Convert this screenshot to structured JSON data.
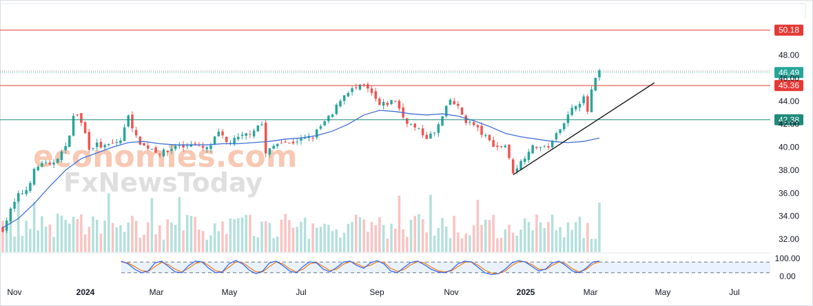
{
  "watermark": {
    "line1": "economies.com",
    "line2": "FxNewsToday"
  },
  "chart_data": {
    "type": "candlestick",
    "title": "",
    "xlabel": "",
    "ylabel": "",
    "ylim": [
      30.8,
      52.8
    ],
    "x_ticks": [
      "Nov",
      "2024",
      "Mar",
      "May",
      "Jul",
      "Sep",
      "Nov",
      "2025",
      "Mar",
      "May",
      "Jul"
    ],
    "y_ticks": [
      "48.00",
      "46.00",
      "44.00",
      "42.00",
      "40.00",
      "38.00",
      "36.00",
      "34.00",
      "32.00"
    ],
    "grid": false,
    "colors": {
      "up": "#26a69a",
      "down": "#ef5350",
      "ma": "#3f6fd8",
      "resistance": "#e53935",
      "support": "#1e8a7a",
      "trend": "#111111"
    },
    "price_path": [
      [
        0,
        32.9
      ],
      [
        2,
        34.5
      ],
      [
        4,
        35.8
      ],
      [
        6,
        36.3
      ],
      [
        8,
        37.9
      ],
      [
        10,
        38.7
      ],
      [
        12,
        38.3
      ],
      [
        14,
        39.2
      ],
      [
        16,
        39.9
      ],
      [
        18,
        42.6
      ],
      [
        19,
        42.9
      ],
      [
        21,
        41.2
      ],
      [
        22,
        40.0
      ],
      [
        24,
        40.2
      ],
      [
        26,
        40.0
      ],
      [
        28,
        40.3
      ],
      [
        30,
        40.6
      ],
      [
        31,
        41.6
      ],
      [
        32,
        42.9
      ],
      [
        34,
        40.8
      ],
      [
        36,
        40.1
      ],
      [
        38,
        39.9
      ],
      [
        40,
        39.5
      ],
      [
        42,
        39.6
      ],
      [
        44,
        40.2
      ],
      [
        46,
        40.0
      ],
      [
        48,
        40.4
      ],
      [
        50,
        40.0
      ],
      [
        52,
        39.8
      ],
      [
        53,
        40.2
      ],
      [
        55,
        41.2
      ],
      [
        57,
        40.4
      ],
      [
        59,
        40.6
      ],
      [
        61,
        40.9
      ],
      [
        63,
        41.3
      ],
      [
        65,
        41.9
      ],
      [
        66,
        42.0
      ],
      [
        67,
        39.4
      ],
      [
        69,
        40.1
      ],
      [
        71,
        40.6
      ],
      [
        73,
        40.3
      ],
      [
        75,
        40.6
      ],
      [
        77,
        40.7
      ],
      [
        79,
        40.9
      ],
      [
        81,
        41.8
      ],
      [
        83,
        42.5
      ],
      [
        84,
        42.8
      ],
      [
        86,
        44.2
      ],
      [
        88,
        44.9
      ],
      [
        90,
        45.1
      ],
      [
        92,
        45.3
      ],
      [
        94,
        44.6
      ],
      [
        96,
        43.6
      ],
      [
        98,
        43.8
      ],
      [
        100,
        44.1
      ],
      [
        102,
        42.6
      ],
      [
        104,
        41.9
      ],
      [
        106,
        41.4
      ],
      [
        108,
        40.9
      ],
      [
        110,
        41.2
      ],
      [
        112,
        42.6
      ],
      [
        114,
        44.1
      ],
      [
        116,
        43.4
      ],
      [
        118,
        42.3
      ],
      [
        120,
        41.9
      ],
      [
        122,
        41.2
      ],
      [
        124,
        40.5
      ],
      [
        126,
        40.0
      ],
      [
        128,
        40.2
      ],
      [
        129,
        38.9
      ],
      [
        130,
        37.9
      ],
      [
        132,
        38.7
      ],
      [
        134,
        39.8
      ],
      [
        136,
        40.1
      ],
      [
        138,
        39.9
      ],
      [
        140,
        40.4
      ],
      [
        142,
        41.8
      ],
      [
        144,
        42.7
      ],
      [
        146,
        43.8
      ],
      [
        148,
        44.2
      ],
      [
        149,
        43.1
      ],
      [
        150,
        44.9
      ],
      [
        151,
        45.8
      ],
      [
        152,
        46.6
      ]
    ],
    "ma_path": [
      [
        0,
        33.0
      ],
      [
        4,
        33.8
      ],
      [
        8,
        35.1
      ],
      [
        12,
        36.6
      ],
      [
        16,
        38.0
      ],
      [
        20,
        39.0
      ],
      [
        24,
        39.5
      ],
      [
        28,
        40.0
      ],
      [
        32,
        40.4
      ],
      [
        36,
        40.5
      ],
      [
        40,
        40.3
      ],
      [
        44,
        40.2
      ],
      [
        48,
        40.2
      ],
      [
        52,
        40.2
      ],
      [
        56,
        40.3
      ],
      [
        60,
        40.3
      ],
      [
        64,
        40.4
      ],
      [
        68,
        40.5
      ],
      [
        72,
        40.7
      ],
      [
        76,
        40.8
      ],
      [
        80,
        41.0
      ],
      [
        84,
        41.4
      ],
      [
        88,
        42.0
      ],
      [
        92,
        42.8
      ],
      [
        96,
        43.2
      ],
      [
        100,
        43.1
      ],
      [
        104,
        42.9
      ],
      [
        108,
        42.8
      ],
      [
        112,
        42.9
      ],
      [
        116,
        42.7
      ],
      [
        120,
        42.3
      ],
      [
        124,
        41.8
      ],
      [
        128,
        41.2
      ],
      [
        132,
        40.9
      ],
      [
        136,
        40.7
      ],
      [
        140,
        40.5
      ],
      [
        144,
        40.4
      ],
      [
        148,
        40.5
      ],
      [
        152,
        40.8
      ]
    ],
    "horizontal_levels": [
      {
        "value": 50.18,
        "label": "50.18",
        "style": "resistance"
      },
      {
        "value": 46.49,
        "label": "46.49",
        "style": "last-price"
      },
      {
        "value": 45.36,
        "label": "45.36",
        "style": "resistance"
      },
      {
        "value": 42.38,
        "label": "42.38",
        "style": "support"
      }
    ],
    "trendline": {
      "from": [
        130,
        37.6
      ],
      "to": [
        166,
        45.6
      ]
    },
    "stochastic": {
      "y_ticks": [
        "100.00",
        "0.00"
      ],
      "upper": 80,
      "lower": 20,
      "k": [
        85,
        70,
        40,
        20,
        30,
        75,
        85,
        55,
        25,
        20,
        60,
        85,
        80,
        45,
        20,
        25,
        70,
        88,
        70,
        35,
        15,
        30,
        75,
        85,
        60,
        30,
        20,
        55,
        82,
        75,
        40,
        25,
        50,
        80,
        85,
        60,
        45,
        75,
        88,
        70,
        30,
        20,
        50,
        78,
        85,
        65,
        40,
        25,
        20,
        35,
        70,
        85,
        80,
        50,
        20,
        10,
        15,
        40,
        75,
        88,
        80,
        55,
        30,
        40,
        75,
        85,
        60,
        30,
        20,
        45,
        80,
        85
      ],
      "d": [
        80,
        75,
        55,
        32,
        28,
        55,
        78,
        65,
        40,
        25,
        45,
        72,
        82,
        60,
        32,
        24,
        52,
        80,
        78,
        50,
        25,
        25,
        55,
        80,
        70,
        42,
        25,
        40,
        70,
        78,
        55,
        32,
        40,
        68,
        82,
        70,
        52,
        62,
        82,
        78,
        45,
        28,
        38,
        65,
        82,
        75,
        52,
        32,
        25,
        30,
        55,
        78,
        82,
        62,
        35,
        18,
        15,
        30,
        60,
        82,
        82,
        65,
        40,
        38,
        62,
        80,
        70,
        42,
        25,
        38,
        68,
        82
      ]
    }
  }
}
